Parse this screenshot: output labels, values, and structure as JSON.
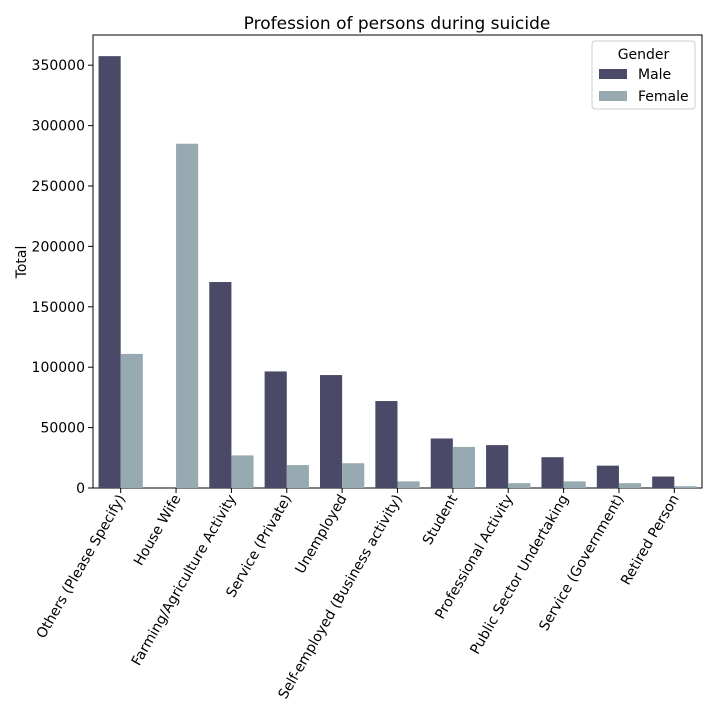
{
  "chart_data": {
    "type": "bar",
    "title": "Profession of persons during suicide",
    "xlabel": "",
    "ylabel": "Total",
    "categories": [
      "Others (Please Specify)",
      "House Wife",
      "Farming/Agriculture Activity",
      "Service (Private)",
      "Unemployed",
      "Self-employed (Business activity)",
      "Student",
      "Professional Activity",
      "Public Sector Undertaking",
      "Service (Government)",
      "Retired Person"
    ],
    "series": [
      {
        "name": "Male",
        "color": "#4a4a68",
        "values": [
          357500,
          0,
          170500,
          96500,
          93500,
          72000,
          41000,
          35500,
          25500,
          18500,
          9500
        ]
      },
      {
        "name": "Female",
        "color": "#97aab1",
        "values": [
          111000,
          285000,
          27000,
          19000,
          20500,
          5500,
          34000,
          4000,
          5500,
          4000,
          1500
        ]
      }
    ],
    "ylim": [
      0,
      375000
    ],
    "yticks": [
      0,
      50000,
      100000,
      150000,
      200000,
      250000,
      300000,
      350000
    ],
    "ytick_labels": [
      "0",
      "50000",
      "100000",
      "150000",
      "200000",
      "250000",
      "300000",
      "350000"
    ],
    "legend": {
      "title": "Gender",
      "position": "top-right"
    },
    "grid": false
  }
}
